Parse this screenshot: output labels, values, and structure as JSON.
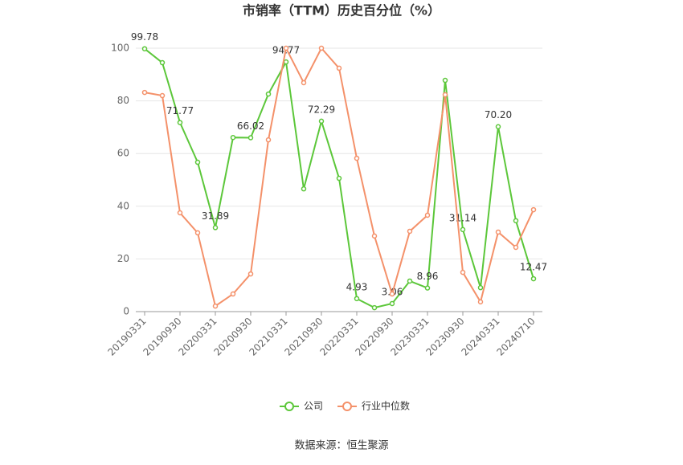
{
  "chart_data": {
    "type": "line",
    "title": "市销率（TTM）历史百分位（%）",
    "source": "数据来源：恒生聚源",
    "categories": [
      "20190331",
      null,
      "20190930",
      null,
      "20200331",
      null,
      "20200930",
      null,
      "20210331",
      null,
      "20210930",
      null,
      "20220331",
      null,
      "20220930",
      null,
      "20230331",
      null,
      "20230930",
      null,
      "20240331",
      null,
      "20240710"
    ],
    "series": [
      {
        "name": "公司",
        "color": "#5cc73a",
        "values": [
          99.78,
          94.5,
          71.77,
          56.7,
          31.89,
          66.1,
          66.02,
          82.6,
          94.77,
          46.6,
          72.29,
          50.6,
          4.93,
          1.5,
          3.06,
          11.6,
          8.96,
          87.8,
          31.14,
          9.1,
          70.2,
          34.5,
          12.47
        ],
        "value_labels": [
          "99.78",
          null,
          "71.77",
          null,
          "31.89",
          null,
          "66.02",
          null,
          "94.77",
          null,
          "72.29",
          null,
          "4.93",
          null,
          "3.06",
          null,
          "8.96",
          null,
          "31.14",
          null,
          "70.20",
          null,
          "12.47"
        ]
      },
      {
        "name": "行业中位数",
        "color": "#f4916a",
        "values": [
          83.2,
          82,
          37.5,
          29.9,
          2.1,
          6.7,
          14.3,
          65.2,
          100,
          86.9,
          100,
          92.4,
          58.2,
          28.7,
          6.7,
          30.5,
          36.6,
          82.3,
          14.9,
          3.7,
          30.2,
          24.4,
          38.7
        ]
      }
    ],
    "ylim": [
      0,
      100
    ],
    "yticks": [
      0,
      20,
      40,
      60,
      80,
      100
    ],
    "grid": true
  }
}
